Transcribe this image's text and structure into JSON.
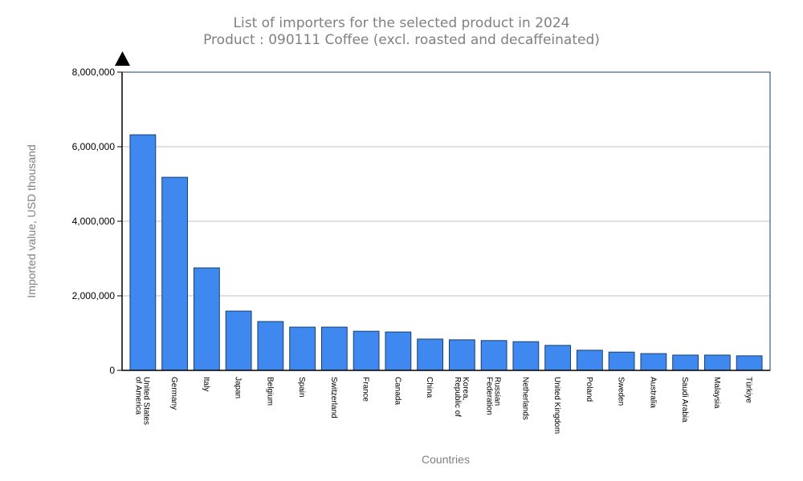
{
  "chart_data": {
    "type": "bar",
    "title": "List of importers for the selected product in 2024",
    "subtitle": "Product : 090111 Coffee (excl. roasted and decaffeinated)",
    "xlabel": "Countries",
    "ylabel": "Imported value, USD thousand",
    "ylim": [
      0,
      8000000
    ],
    "yticks": [
      0,
      2000000,
      4000000,
      6000000,
      8000000
    ],
    "ytick_labels": [
      "0",
      "2,000,000",
      "4,000,000",
      "6,000,000",
      "8,000,000"
    ],
    "grid": true,
    "bar_color": "#3f88ef",
    "bar_edge_color": "#1a3e6e",
    "categories": [
      [
        "United States",
        "of America"
      ],
      [
        "Germany"
      ],
      [
        "Italy"
      ],
      [
        "Japan"
      ],
      [
        "Belgium"
      ],
      [
        "Spain"
      ],
      [
        "Switzerland"
      ],
      [
        "France"
      ],
      [
        "Canada"
      ],
      [
        "China"
      ],
      [
        "Korea,",
        "Republic of"
      ],
      [
        "Russian",
        "Federation"
      ],
      [
        "Netherlands"
      ],
      [
        "United Kingdom"
      ],
      [
        "Poland"
      ],
      [
        "Sweden"
      ],
      [
        "Australia"
      ],
      [
        "Saudi Arabia"
      ],
      [
        "Malaysia"
      ],
      [
        "Türkiye"
      ]
    ],
    "values": [
      6320000,
      5180000,
      2750000,
      1590000,
      1310000,
      1160000,
      1160000,
      1050000,
      1030000,
      840000,
      820000,
      800000,
      770000,
      670000,
      540000,
      490000,
      450000,
      410000,
      410000,
      390000
    ]
  }
}
